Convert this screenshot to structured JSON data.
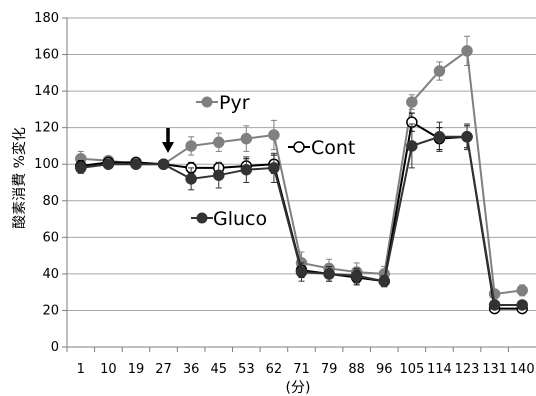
{
  "chart_data": {
    "type": "line",
    "categories": [
      "1",
      "10",
      "19",
      "27",
      "36",
      "45",
      "53",
      "62",
      "71",
      "79",
      "88",
      "96",
      "105",
      "114",
      "123",
      "131",
      "140"
    ],
    "xlabel": "(分)",
    "ylabel": "酸素消費 %変化",
    "ylim": [
      0,
      180
    ],
    "yticks": [
      0,
      20,
      40,
      60,
      80,
      100,
      120,
      140,
      160,
      180
    ],
    "grid": true,
    "annotation": {
      "symbol": "arrow-down",
      "at_category": "27"
    },
    "series": [
      {
        "name": "Pyr",
        "color": "#808080",
        "marker": "filled-gray",
        "values": [
          103,
          102,
          100,
          100,
          110,
          112,
          114,
          116,
          46,
          43,
          41,
          40,
          134,
          151,
          162,
          29,
          31
        ],
        "errors": [
          4,
          2,
          2,
          1,
          5,
          5,
          7,
          8,
          6,
          5,
          5,
          4,
          4,
          5,
          8,
          2,
          3
        ]
      },
      {
        "name": "Cont",
        "color": "#000000",
        "marker": "open",
        "values": [
          99,
          101,
          101,
          100,
          98,
          98,
          99,
          100,
          42,
          40,
          38,
          36,
          123,
          114,
          115,
          21,
          21
        ],
        "errors": [
          3,
          2,
          2,
          1,
          3,
          3,
          4,
          5,
          4,
          4,
          4,
          3,
          5,
          6,
          6,
          2,
          2
        ]
      },
      {
        "name": "Gluco",
        "color": "#333333",
        "marker": "filled-dark",
        "values": [
          98,
          100,
          100,
          100,
          92,
          94,
          97,
          98,
          41,
          40,
          39,
          36,
          110,
          115,
          115,
          23,
          23
        ],
        "errors": [
          3,
          2,
          2,
          1,
          6,
          7,
          7,
          8,
          5,
          4,
          4,
          3,
          12,
          8,
          7,
          2,
          2
        ]
      }
    ]
  }
}
